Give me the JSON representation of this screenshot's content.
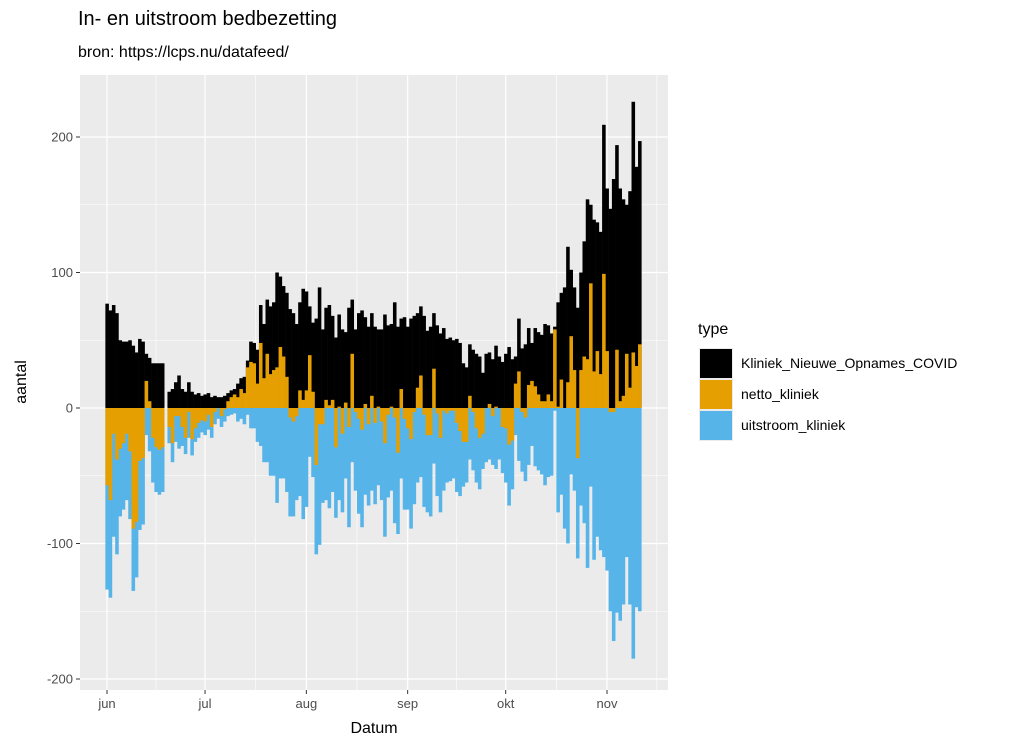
{
  "chart_data": {
    "type": "bar",
    "title": "In- en uitstroom bedbezetting",
    "subtitle": "bron: https://lcps.nu/datafeed/",
    "xlabel": "Datum",
    "ylabel": "aantal",
    "ylim": [
      -208,
      246
    ],
    "yticks": [
      -200,
      -100,
      0,
      100,
      200
    ],
    "xtick_labels": [
      "jun",
      "jul",
      "aug",
      "sep",
      "okt",
      "nov"
    ],
    "xtick_dates": [
      "06-01",
      "07-01",
      "08-01",
      "09-01",
      "10-01",
      "11-01"
    ],
    "grid": true,
    "legend": {
      "title": "type",
      "placement": "right"
    },
    "colors": {
      "Kliniek_Nieuwe_Opnames_COVID": "#000000",
      "netto_kliniek": "#E69F00",
      "uitstroom_kliniek": "#56B4E9",
      "panel": "#EBEBEB",
      "grid": "#FFFFFF"
    },
    "x": [
      "06-01",
      "06-02",
      "06-03",
      "06-04",
      "06-05",
      "06-06",
      "06-07",
      "06-08",
      "06-09",
      "06-10",
      "06-11",
      "06-12",
      "06-13",
      "06-14",
      "06-15",
      "06-16",
      "06-17",
      "06-18",
      "06-19",
      "06-20",
      "06-21",
      "06-22",
      "06-23",
      "06-24",
      "06-25",
      "06-26",
      "06-27",
      "06-28",
      "06-29",
      "06-30",
      "07-01",
      "07-02",
      "07-03",
      "07-04",
      "07-05",
      "07-06",
      "07-07",
      "07-08",
      "07-09",
      "07-10",
      "07-11",
      "07-12",
      "07-13",
      "07-14",
      "07-15",
      "07-16",
      "07-17",
      "07-18",
      "07-19",
      "07-20",
      "07-21",
      "07-22",
      "07-23",
      "07-24",
      "07-25",
      "07-26",
      "07-27",
      "07-28",
      "07-29",
      "07-30",
      "07-31",
      "08-01",
      "08-02",
      "08-03",
      "08-04",
      "08-05",
      "08-06",
      "08-07",
      "08-08",
      "08-09",
      "08-10",
      "08-11",
      "08-12",
      "08-13",
      "08-14",
      "08-15",
      "08-16",
      "08-17",
      "08-18",
      "08-19",
      "08-20",
      "08-21",
      "08-22",
      "08-23",
      "08-24",
      "08-25",
      "08-26",
      "08-27",
      "08-28",
      "08-29",
      "08-30",
      "08-31",
      "09-01",
      "09-02",
      "09-03",
      "09-04",
      "09-05",
      "09-06",
      "09-07",
      "09-08",
      "09-09",
      "09-10",
      "09-11",
      "09-12",
      "09-13",
      "09-14",
      "09-15",
      "09-16",
      "09-17",
      "09-18",
      "09-19",
      "09-20",
      "09-21",
      "09-22",
      "09-23",
      "09-24",
      "09-25",
      "09-26",
      "09-27",
      "09-28",
      "09-29",
      "09-30",
      "10-01",
      "10-02",
      "10-03",
      "10-04",
      "10-05",
      "10-06",
      "10-07",
      "10-08",
      "10-09",
      "10-10",
      "10-11",
      "10-12",
      "10-13",
      "10-14",
      "10-15",
      "10-16",
      "10-17",
      "10-18",
      "10-19",
      "10-20",
      "10-21",
      "10-22",
      "10-23",
      "10-24",
      "10-25",
      "10-26",
      "10-27",
      "10-28",
      "10-29",
      "10-30",
      "10-31",
      "11-01",
      "11-02",
      "11-03",
      "11-04",
      "11-05",
      "11-06",
      "11-07",
      "11-08",
      "11-09",
      "11-10",
      "11-11"
    ],
    "series": [
      {
        "name": "Kliniek_Nieuwe_Opnames_COVID",
        "values": [
          77,
          72,
          76,
          70,
          50,
          49,
          49,
          50,
          46,
          41,
          51,
          49,
          40,
          37,
          33,
          33,
          33,
          33,
          null,
          12,
          14,
          19,
          24,
          14,
          12,
          19,
          12,
          10,
          11,
          9,
          10,
          11,
          8,
          9,
          8,
          8,
          9,
          11,
          13,
          14,
          18,
          22,
          23,
          35,
          49,
          48,
          43,
          76,
          62,
          80,
          75,
          78,
          100,
          97,
          90,
          85,
          73,
          70,
          62,
          78,
          88,
          86,
          75,
          63,
          66,
          89,
          58,
          74,
          76,
          68,
          52,
          69,
          58,
          56,
          74,
          80,
          58,
          70,
          72,
          67,
          60,
          70,
          60,
          58,
          58,
          69,
          61,
          62,
          78,
          60,
          66,
          67,
          60,
          66,
          68,
          70,
          75,
          68,
          57,
          60,
          70,
          61,
          55,
          59,
          51,
          52,
          50,
          51,
          48,
          33,
          30,
          47,
          43,
          40,
          38,
          26,
          40,
          41,
          36,
          46,
          38,
          34,
          40,
          45,
          36,
          38,
          66,
          44,
          47,
          59,
          48,
          59,
          56,
          54,
          62,
          61,
          55,
          60,
          78,
          85,
          89,
          119,
          102,
          89,
          74,
          100,
          123,
          154,
          150,
          139,
          137,
          130,
          209,
          162,
          147,
          169,
          194,
          162,
          154,
          150,
          160,
          226,
          178,
          197
        ]
      },
      {
        "name": "netto_kliniek",
        "values": [
          -57,
          -68,
          -19,
          -38,
          -30,
          -26,
          -19,
          -32,
          -89,
          -84,
          -39,
          -37,
          20,
          5,
          -22,
          -29,
          -31,
          -29,
          null,
          -14,
          -26,
          -6,
          -6,
          -14,
          -22,
          -3,
          -23,
          -15,
          -11,
          -9,
          -10,
          -5,
          -14,
          -3,
          0,
          -6,
          -1,
          5,
          8,
          10,
          8,
          14,
          11,
          30,
          34,
          33,
          18,
          48,
          22,
          40,
          25,
          28,
          30,
          45,
          38,
          23,
          -7,
          -10,
          -6,
          13,
          6,
          13,
          39,
          12,
          -42,
          -12,
          -12,
          6,
          2,
          6,
          -29,
          1,
          -19,
          4,
          -14,
          40,
          -3,
          -8,
          -16,
          3,
          -12,
          9,
          -11,
          1,
          -10,
          -26,
          -5,
          1,
          -7,
          -33,
          14,
          -8,
          -15,
          -23,
          -3,
          15,
          24,
          -5,
          -20,
          -20,
          29,
          -4,
          -22,
          -2,
          -4,
          -2,
          -2,
          -11,
          -17,
          -25,
          -25,
          9,
          -3,
          -15,
          -22,
          -19,
          0,
          3,
          -6,
          1,
          0,
          -14,
          -15,
          -27,
          -24,
          18,
          27,
          -3,
          -7,
          17,
          20,
          16,
          10,
          5,
          5,
          10,
          5,
          58,
          1,
          21,
          0,
          19,
          53,
          28,
          -37,
          28,
          38,
          36,
          92,
          27,
          42,
          25,
          99,
          42,
          -3,
          -3,
          43,
          5,
          9,
          40,
          15,
          41,
          31,
          47
        ]
      },
      {
        "name": "uitstroom_kliniek",
        "values": [
          -134,
          -140,
          -95,
          -108,
          -80,
          -75,
          -68,
          -82,
          -135,
          -125,
          -90,
          -86,
          -20,
          -32,
          -55,
          -62,
          -64,
          -62,
          null,
          -26,
          -40,
          -25,
          -30,
          -28,
          -34,
          -22,
          -35,
          -25,
          -22,
          -18,
          -20,
          -16,
          -22,
          -12,
          -8,
          -14,
          -10,
          -6,
          -5,
          -4,
          -10,
          -8,
          -12,
          -5,
          -15,
          -15,
          -25,
          -28,
          -40,
          -40,
          -50,
          -50,
          -70,
          -52,
          -52,
          -62,
          -80,
          -80,
          -68,
          -65,
          -82,
          -73,
          -36,
          -51,
          -108,
          -101,
          -70,
          -68,
          -74,
          -62,
          -81,
          -68,
          -77,
          -52,
          -88,
          -40,
          -61,
          -78,
          -88,
          -64,
          -72,
          -61,
          -71,
          -57,
          -68,
          -95,
          -66,
          -61,
          -85,
          -93,
          -52,
          -75,
          -75,
          -89,
          -71,
          -55,
          -51,
          -73,
          -77,
          -80,
          -41,
          -65,
          -77,
          -61,
          -55,
          -54,
          -52,
          -62,
          -65,
          -58,
          -55,
          -38,
          -46,
          -55,
          -60,
          -45,
          -40,
          -38,
          -42,
          -45,
          -38,
          -48,
          -55,
          -72,
          -60,
          -20,
          -39,
          -47,
          -54,
          -42,
          -28,
          -43,
          -46,
          -49,
          -57,
          -51,
          -50,
          -2,
          -77,
          -64,
          -89,
          -100,
          -49,
          -61,
          -111,
          -72,
          -85,
          -118,
          -58,
          -112,
          -95,
          -105,
          -110,
          -120,
          -150,
          -172,
          -151,
          -157,
          -145,
          -110,
          -145,
          -185,
          -147,
          -150
        ]
      }
    ]
  }
}
